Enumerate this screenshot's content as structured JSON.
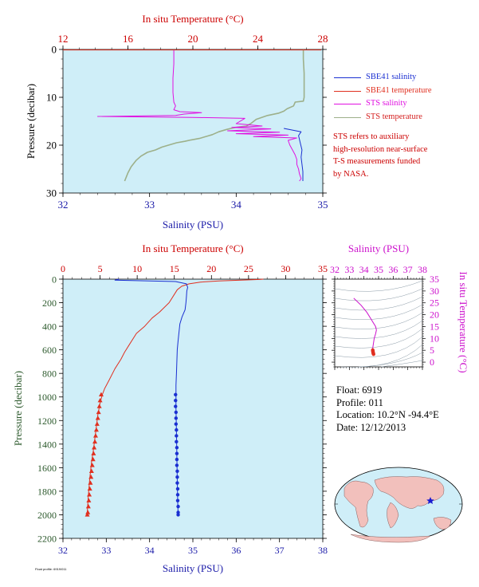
{
  "colors": {
    "plot_bg": "#cfeef8",
    "salinity_axis": "#1a1aa8",
    "temperature_axis": "#cc0000",
    "pressure_axis": "#2d5a2d",
    "sbe41_salinity": "#1a2fd1",
    "sbe41_temperature": "#e03020",
    "sts_salinity": "#e010e0",
    "sts_temperature": "#9db08a",
    "ts_axis": "#cc10cc"
  },
  "legend": {
    "items": [
      {
        "label": "SBE41 salinity",
        "color": "#1a2fd1"
      },
      {
        "label": "SBE41 temperature",
        "color": "#e03020"
      },
      {
        "label": "STS salinity",
        "color": "#e010e0"
      },
      {
        "label": "STS temperature",
        "color": "#9db08a"
      }
    ]
  },
  "note": {
    "lines": [
      "STS refers to auxiliary",
      "high-resolution near-surface",
      "T-S measurements funded",
      "by NASA."
    ]
  },
  "float_info": {
    "float_line": "Float:  6919",
    "profile_line": "Profile:  011",
    "location_line": "Location:  10.2°N  -94.4°E",
    "date_line": "Date:  12/12/2013"
  },
  "credit_text": "Float profile: 6919/011",
  "chart_data": [
    {
      "type": "line",
      "name": "Near-surface profile",
      "top_axis_label": "In situ Temperature (°C)",
      "bottom_axis_label": "Salinity (PSU)",
      "ylabel": "Pressure (decibar)",
      "temperature_lim": [
        12,
        28
      ],
      "temperature_ticks": [
        12,
        16,
        20,
        24,
        28
      ],
      "salinity_lim": [
        32,
        35
      ],
      "salinity_ticks": [
        32,
        33,
        34,
        35
      ],
      "pressure_lim": [
        0,
        30
      ],
      "pressure_ticks": [
        0,
        10,
        20,
        30
      ],
      "series": [
        {
          "name": "STS temperature",
          "axis": "temperature",
          "color_key": "sts_temperature",
          "points": [
            [
              26.8,
              0
            ],
            [
              26.8,
              2
            ],
            [
              26.85,
              5
            ],
            [
              26.85,
              8
            ],
            [
              26.85,
              10
            ],
            [
              26.8,
              10.8
            ],
            [
              26.3,
              11.0
            ],
            [
              26.2,
              11.8
            ],
            [
              25.8,
              12.4
            ],
            [
              25.6,
              12.9
            ],
            [
              25.3,
              13.3
            ],
            [
              24.6,
              13.8
            ],
            [
              23.9,
              14.6
            ],
            [
              23.6,
              15.4
            ],
            [
              23.3,
              16.0
            ],
            [
              22.6,
              16.3
            ],
            [
              22.1,
              16.7
            ],
            [
              21.6,
              17.2
            ],
            [
              21.2,
              17.8
            ],
            [
              20.9,
              18.1
            ],
            [
              20.4,
              18.6
            ],
            [
              19.9,
              18.9
            ],
            [
              19.5,
              19.2
            ],
            [
              19.0,
              19.5
            ],
            [
              18.6,
              19.9
            ],
            [
              18.1,
              20.4
            ],
            [
              17.7,
              21.0
            ],
            [
              17.2,
              21.5
            ],
            [
              16.8,
              22.3
            ],
            [
              16.5,
              23.2
            ],
            [
              16.2,
              24.5
            ],
            [
              16.0,
              25.8
            ],
            [
              15.8,
              27.5
            ]
          ]
        },
        {
          "name": "STS salinity",
          "axis": "salinity",
          "color_key": "sts_salinity",
          "points": [
            [
              33.28,
              0
            ],
            [
              33.28,
              3
            ],
            [
              33.27,
              6
            ],
            [
              33.27,
              9
            ],
            [
              33.28,
              11
            ],
            [
              33.3,
              11.8
            ],
            [
              33.28,
              12.6
            ],
            [
              33.35,
              13.0
            ],
            [
              33.6,
              13.2
            ],
            [
              33.4,
              13.5
            ],
            [
              33.3,
              13.8
            ],
            [
              32.4,
              14.0
            ],
            [
              33.5,
              14.2
            ],
            [
              34.1,
              14.4
            ],
            [
              34.0,
              15.5
            ],
            [
              34.3,
              16.0
            ],
            [
              33.95,
              16.3
            ],
            [
              34.4,
              16.6
            ],
            [
              33.9,
              17.0
            ],
            [
              34.5,
              17.3
            ],
            [
              34.0,
              17.6
            ],
            [
              34.6,
              17.9
            ],
            [
              34.2,
              18.2
            ],
            [
              34.7,
              18.5
            ],
            [
              34.6,
              19.0
            ],
            [
              34.62,
              20.0
            ],
            [
              34.65,
              21.0
            ],
            [
              34.68,
              22.0
            ],
            [
              34.7,
              23.0
            ],
            [
              34.7,
              24.0
            ],
            [
              34.72,
              25.0
            ],
            [
              34.73,
              26.0
            ],
            [
              34.75,
              27.0
            ],
            [
              34.73,
              27.5
            ]
          ]
        },
        {
          "name": "SBE41 salinity",
          "axis": "salinity",
          "color_key": "sbe41_salinity",
          "points": [
            [
              34.55,
              16.5
            ],
            [
              34.75,
              17.2
            ],
            [
              34.72,
              18.0
            ],
            [
              34.74,
              19.5
            ],
            [
              34.76,
              21.0
            ],
            [
              34.75,
              22.5
            ],
            [
              34.76,
              24.0
            ],
            [
              34.77,
              25.5
            ],
            [
              34.77,
              27.5
            ]
          ]
        },
        {
          "name": "SBE41 temperature",
          "axis": "temperature",
          "color_key": "sbe41_temperature",
          "points": [
            [
              12.0,
              0.1
            ],
            [
              27.9,
              0.1
            ]
          ]
        }
      ]
    },
    {
      "type": "line",
      "name": "Full profile",
      "top_axis_label": "In situ Temperature (°C)",
      "bottom_axis_label": "Salinity (PSU)",
      "ylabel": "Pressure (decibar)",
      "temperature_lim": [
        0,
        35
      ],
      "temperature_ticks": [
        0,
        5,
        10,
        15,
        20,
        25,
        30,
        35
      ],
      "salinity_lim": [
        32,
        38
      ],
      "salinity_ticks": [
        32,
        33,
        34,
        35,
        36,
        37,
        38
      ],
      "pressure_lim": [
        0,
        2200
      ],
      "pressure_ticks": [
        0,
        200,
        400,
        600,
        800,
        1000,
        1200,
        1400,
        1600,
        1800,
        2000,
        2200
      ],
      "series": [
        {
          "name": "SBE41 temperature",
          "axis": "temperature",
          "color_key": "sbe41_temperature",
          "points": [
            [
              27.0,
              0
            ],
            [
              26.5,
              3
            ],
            [
              24.0,
              8
            ],
            [
              21.0,
              15
            ],
            [
              18.5,
              25
            ],
            [
              17.0,
              40
            ],
            [
              16.0,
              60
            ],
            [
              15.4,
              90
            ],
            [
              15.0,
              130
            ],
            [
              14.3,
              200
            ],
            [
              13.0,
              280
            ],
            [
              12.0,
              330
            ],
            [
              11.0,
              400
            ],
            [
              9.9,
              460
            ],
            [
              8.9,
              560
            ],
            [
              8.3,
              620
            ],
            [
              7.8,
              680
            ],
            [
              7.0,
              760
            ],
            [
              6.2,
              860
            ],
            [
              5.6,
              930
            ],
            [
              5.3,
              980
            ],
            [
              5.0,
              1050
            ],
            [
              4.7,
              1150
            ],
            [
              4.4,
              1300
            ],
            [
              4.1,
              1450
            ],
            [
              3.85,
              1550
            ],
            [
              3.6,
              1700
            ],
            [
              3.4,
              1850
            ],
            [
              3.25,
              2000
            ]
          ],
          "markers": [
            [
              5.15,
              980
            ],
            [
              5.0,
              1030
            ],
            [
              4.9,
              1080
            ],
            [
              4.8,
              1130
            ],
            [
              4.7,
              1180
            ],
            [
              4.6,
              1230
            ],
            [
              4.5,
              1280
            ],
            [
              4.4,
              1330
            ],
            [
              4.3,
              1380
            ],
            [
              4.2,
              1430
            ],
            [
              4.12,
              1480
            ],
            [
              4.05,
              1530
            ],
            [
              3.95,
              1580
            ],
            [
              3.85,
              1630
            ],
            [
              3.78,
              1680
            ],
            [
              3.7,
              1730
            ],
            [
              3.62,
              1780
            ],
            [
              3.55,
              1830
            ],
            [
              3.48,
              1880
            ],
            [
              3.42,
              1930
            ],
            [
              3.35,
              1980
            ],
            [
              3.28,
              2000
            ]
          ]
        },
        {
          "name": "SBE41 salinity",
          "axis": "salinity",
          "color_key": "sbe41_salinity",
          "points": [
            [
              33.3,
              0
            ],
            [
              33.2,
              8
            ],
            [
              34.6,
              20
            ],
            [
              34.85,
              40
            ],
            [
              34.88,
              70
            ],
            [
              34.86,
              100
            ],
            [
              34.85,
              150
            ],
            [
              34.84,
              200
            ],
            [
              34.82,
              260
            ],
            [
              34.75,
              320
            ],
            [
              34.7,
              380
            ],
            [
              34.68,
              450
            ],
            [
              34.66,
              520
            ],
            [
              34.64,
              600
            ],
            [
              34.63,
              700
            ],
            [
              34.62,
              800
            ],
            [
              34.61,
              900
            ],
            [
              34.61,
              980
            ],
            [
              34.61,
              1100
            ],
            [
              34.62,
              1300
            ],
            [
              34.63,
              1500
            ],
            [
              34.64,
              1700
            ],
            [
              34.65,
              1900
            ],
            [
              34.66,
              2000
            ]
          ],
          "markers": [
            [
              34.6,
              980
            ],
            [
              34.6,
              1030
            ],
            [
              34.6,
              1080
            ],
            [
              34.61,
              1130
            ],
            [
              34.61,
              1180
            ],
            [
              34.61,
              1230
            ],
            [
              34.62,
              1280
            ],
            [
              34.62,
              1330
            ],
            [
              34.62,
              1380
            ],
            [
              34.63,
              1430
            ],
            [
              34.63,
              1480
            ],
            [
              34.63,
              1530
            ],
            [
              34.63,
              1580
            ],
            [
              34.64,
              1630
            ],
            [
              34.64,
              1680
            ],
            [
              34.64,
              1730
            ],
            [
              34.65,
              1780
            ],
            [
              34.65,
              1830
            ],
            [
              34.65,
              1880
            ],
            [
              34.66,
              1930
            ],
            [
              34.66,
              1980
            ],
            [
              34.66,
              2000
            ]
          ]
        }
      ]
    },
    {
      "type": "scatter",
      "name": "T-S diagram",
      "xlabel": "Salinity (PSU)",
      "ylabel": "In situ Temperature (°C)",
      "xlim": [
        32,
        38
      ],
      "xticks": [
        32,
        33,
        34,
        35,
        36,
        37,
        38
      ],
      "ylim": [
        -2,
        35
      ],
      "yticks": [
        0,
        5,
        10,
        15,
        20,
        25,
        30,
        35
      ],
      "series": [
        {
          "name": "T-S curve",
          "color_key": "ts_axis",
          "points": [
            [
              33.3,
              27.0
            ],
            [
              33.8,
              24.0
            ],
            [
              34.2,
              21.0
            ],
            [
              34.5,
              18.0
            ],
            [
              34.8,
              15.0
            ],
            [
              34.85,
              13.5
            ],
            [
              34.8,
              12.0
            ],
            [
              34.7,
              10.0
            ],
            [
              34.65,
              8.0
            ],
            [
              34.6,
              6.0
            ],
            [
              34.6,
              5.0
            ],
            [
              34.62,
              4.0
            ],
            [
              34.65,
              3.5
            ],
            [
              34.66,
              3.3
            ]
          ]
        },
        {
          "name": "deep markers",
          "color_key": "sbe41_temperature",
          "points": [
            [
              34.6,
              5.15
            ],
            [
              34.6,
              5.0
            ],
            [
              34.61,
              4.8
            ],
            [
              34.61,
              4.6
            ],
            [
              34.62,
              4.4
            ],
            [
              34.62,
              4.2
            ],
            [
              34.63,
              4.05
            ],
            [
              34.63,
              3.85
            ],
            [
              34.64,
              3.7
            ],
            [
              34.65,
              3.55
            ],
            [
              34.65,
              3.42
            ],
            [
              34.66,
              3.3
            ]
          ]
        }
      ]
    }
  ]
}
